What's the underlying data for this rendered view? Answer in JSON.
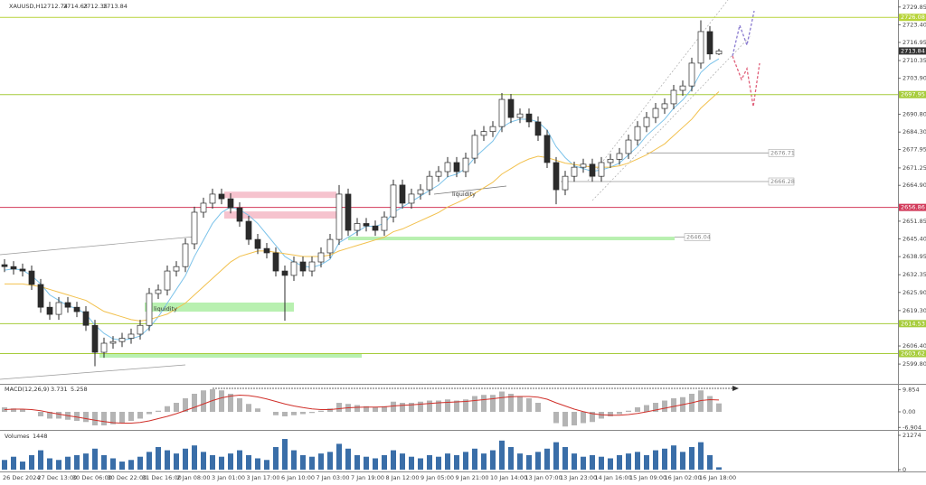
{
  "chart_data": [
    {
      "type": "candlestick",
      "title": "XAUUSD,H1",
      "open": [
        2636.0,
        2635.3,
        2634.4,
        2633.7,
        2628.8,
        2620.5,
        2617.9,
        2622.2,
        2620.5,
        2618.9,
        2613.9,
        2604.1,
        2607.4,
        2608.0,
        2609.2,
        2610.7,
        2613.9,
        2625.5,
        2626.8,
        2633.7,
        2635.3,
        2643.6,
        2655.1,
        2658.4,
        2661.7,
        2660.0,
        2656.7,
        2651.8,
        2645.2,
        2641.9,
        2640.3,
        2633.7,
        2632.1,
        2637.0,
        2633.7,
        2637.0,
        2640.3,
        2645.2,
        2661.7,
        2648.5,
        2651.0,
        2650.1,
        2648.5,
        2653.4,
        2665.0,
        2658.4,
        2661.7,
        2663.3,
        2668.2,
        2669.9,
        2673.2,
        2669.9,
        2674.8,
        2683.1,
        2684.5,
        2686.3,
        2696.2,
        2689.6,
        2690.9,
        2688.0,
        2683.1,
        2673.2,
        2663.3,
        2668.2,
        2671.5,
        2672.6,
        2668.2,
        2673.2,
        2674.4,
        2676.5,
        2681.4,
        2686.3,
        2689.6,
        2692.9,
        2694.6,
        2699.5,
        2701.1,
        2709.4,
        2720.9,
        2712.74
      ],
      "high": [
        2638.0,
        2637.3,
        2636.4,
        2635.7,
        2630.8,
        2622.5,
        2624.2,
        2624.2,
        2622.5,
        2620.9,
        2615.9,
        2609.4,
        2610.0,
        2611.2,
        2612.7,
        2615.9,
        2627.5,
        2628.8,
        2635.7,
        2637.3,
        2645.6,
        2657.1,
        2660.4,
        2663.7,
        2663.7,
        2662.0,
        2658.7,
        2653.8,
        2647.2,
        2643.9,
        2642.3,
        2635.7,
        2639.0,
        2639.0,
        2639.0,
        2642.3,
        2647.2,
        2665.0,
        2663.7,
        2653.0,
        2653.0,
        2652.1,
        2655.4,
        2667.0,
        2667.0,
        2663.7,
        2665.3,
        2670.2,
        2671.9,
        2675.2,
        2675.2,
        2676.8,
        2685.1,
        2686.5,
        2688.3,
        2698.5,
        2698.2,
        2692.9,
        2692.9,
        2690.0,
        2685.1,
        2675.2,
        2670.2,
        2673.5,
        2674.6,
        2674.6,
        2675.2,
        2676.4,
        2678.5,
        2683.4,
        2688.3,
        2691.6,
        2694.9,
        2696.6,
        2701.5,
        2703.1,
        2711.4,
        2725.0,
        2722.9,
        2714.63
      ],
      "low": [
        2633.3,
        2632.4,
        2631.7,
        2626.8,
        2618.5,
        2615.9,
        2615.9,
        2618.5,
        2616.9,
        2611.9,
        2599.0,
        2602.1,
        2605.4,
        2606.0,
        2607.2,
        2608.7,
        2611.9,
        2623.5,
        2624.8,
        2631.7,
        2633.3,
        2641.6,
        2653.1,
        2656.4,
        2658.0,
        2654.7,
        2649.8,
        2643.2,
        2639.9,
        2638.3,
        2631.7,
        2615.6,
        2630.1,
        2631.7,
        2631.7,
        2635.0,
        2638.3,
        2643.2,
        2646.5,
        2646.5,
        2648.1,
        2646.5,
        2646.5,
        2651.4,
        2656.4,
        2656.4,
        2659.7,
        2661.3,
        2666.2,
        2667.9,
        2667.9,
        2667.9,
        2672.8,
        2681.1,
        2682.5,
        2684.3,
        2687.6,
        2687.6,
        2686.0,
        2681.1,
        2671.2,
        2658.0,
        2661.3,
        2666.2,
        2669.5,
        2666.2,
        2666.2,
        2671.2,
        2672.4,
        2674.5,
        2679.4,
        2684.3,
        2687.6,
        2690.9,
        2692.6,
        2697.5,
        2699.1,
        2707.4,
        2710.7,
        2712.35
      ],
      "close": [
        2635.3,
        2634.4,
        2633.7,
        2628.8,
        2620.5,
        2617.9,
        2622.2,
        2620.5,
        2618.9,
        2613.9,
        2604.1,
        2607.4,
        2608.0,
        2609.2,
        2610.7,
        2613.9,
        2625.5,
        2626.8,
        2633.7,
        2635.3,
        2643.6,
        2655.1,
        2658.4,
        2661.7,
        2660.0,
        2656.7,
        2651.8,
        2645.2,
        2641.9,
        2640.3,
        2633.7,
        2632.1,
        2637.0,
        2633.7,
        2637.0,
        2640.3,
        2645.2,
        2661.7,
        2648.5,
        2651.0,
        2650.1,
        2648.5,
        2653.4,
        2665.0,
        2658.4,
        2661.7,
        2663.3,
        2668.2,
        2669.9,
        2673.2,
        2669.9,
        2674.8,
        2683.1,
        2684.5,
        2686.3,
        2696.2,
        2689.6,
        2690.9,
        2688.0,
        2683.1,
        2673.2,
        2663.3,
        2668.2,
        2671.5,
        2672.6,
        2668.2,
        2673.2,
        2674.4,
        2676.5,
        2681.4,
        2686.3,
        2689.6,
        2692.9,
        2694.6,
        2699.5,
        2701.1,
        2709.4,
        2720.9,
        2712.74,
        2713.84
      ],
      "up_color": "#ffffff",
      "down_color": "#2b2b2b",
      "wick_color": "#2b2b2b",
      "lines": [
        {
          "color": "#7cc3ea",
          "values": [
            2634,
            2634.5,
            2634,
            2632,
            2629,
            2625,
            2623,
            2621,
            2620,
            2618,
            2614,
            2611,
            2609,
            2608.5,
            2609,
            2610,
            2613,
            2617,
            2622,
            2627,
            2632,
            2639,
            2645,
            2651,
            2655,
            2657,
            2656,
            2654,
            2651,
            2647,
            2643,
            2639,
            2637,
            2635.5,
            2635,
            2636,
            2638,
            2644,
            2646,
            2648,
            2650,
            2650,
            2651,
            2655,
            2657,
            2659,
            2661,
            2663,
            2665,
            2668,
            2669,
            2671,
            2675,
            2678,
            2681,
            2686,
            2688,
            2689,
            2689,
            2688,
            2685,
            2679,
            2675,
            2672,
            2671,
            2670,
            2670.5,
            2671.5,
            2673,
            2676,
            2679,
            2683,
            2686,
            2689,
            2693,
            2696,
            2700,
            2706,
            2709,
            2711
          ]
        },
        {
          "color": "#f2c14e",
          "values": [
            2629,
            2629,
            2629,
            2628.5,
            2628,
            2627,
            2626,
            2625,
            2624,
            2623,
            2621,
            2619,
            2618,
            2617,
            2616,
            2615.5,
            2616,
            2617,
            2618,
            2620,
            2622,
            2625,
            2628,
            2631,
            2634,
            2637,
            2639,
            2640,
            2641,
            2641,
            2640.5,
            2640,
            2639.5,
            2639,
            2639,
            2639,
            2639.5,
            2641,
            2642,
            2643,
            2644,
            2645,
            2646,
            2648,
            2649,
            2650.5,
            2652,
            2653.5,
            2655,
            2657,
            2658.5,
            2660,
            2662,
            2664,
            2666,
            2669,
            2671,
            2673,
            2674.5,
            2675.5,
            2675,
            2674,
            2673,
            2672.5,
            2672,
            2671.5,
            2671.5,
            2671.5,
            2672,
            2673,
            2674.5,
            2676,
            2678,
            2680,
            2683,
            2686,
            2689,
            2693,
            2696,
            2699
          ]
        }
      ],
      "levels": [
        {
          "value": 2726.08,
          "color": "#b8d43a"
        },
        {
          "value": 2697.95,
          "color": "#a6cc3a"
        },
        {
          "value": 2656.86,
          "color": "#d23a5a"
        },
        {
          "value": 2614.53,
          "color": "#a6cc3a"
        },
        {
          "value": 2603.62,
          "color": "#a6cc3a"
        }
      ],
      "side_levels": [
        2676.71,
        2666.28,
        2646.04
      ],
      "zones": [
        {
          "low": 2660.3,
          "high": 2662.6,
          "color": "#f6c3ce"
        },
        {
          "low": 2652.8,
          "high": 2655.4,
          "color": "#f6c3ce"
        },
        {
          "low": 2618.9,
          "high": 2622.2,
          "color": "#b8f0b0"
        },
        {
          "low": 2602.1,
          "high": 2603.8,
          "color": "#b8f0b0"
        },
        {
          "low": 2644.9,
          "high": 2646.2,
          "color": "#b8f0b0"
        }
      ],
      "annotations": [
        "liquidity",
        "liquidity"
      ],
      "ylim": [
        2592.6,
        2732.4
      ],
      "yticks": [
        2729.85,
        {
          "value": 2723.4,
          "label": "2723.40"
        },
        2716.95,
        2710.35,
        {
          "value": 2703.9,
          "label": "2703.90"
        },
        {
          "value": 2690.8,
          "label": "2690.80"
        },
        {
          "value": 2684.3,
          "label": "2684.30"
        },
        2677.95,
        2671.25,
        {
          "value": 2664.9,
          "label": "2664.90"
        },
        2651.85,
        {
          "value": 2645.4,
          "label": "2645.40"
        },
        2638.95,
        2632.35,
        {
          "value": 2625.9,
          "label": "2625.90"
        },
        {
          "value": 2619.3,
          "label": "2619.30"
        },
        {
          "value": 2606.4,
          "label": "2606.40"
        },
        {
          "value": 2599.8,
          "label": "2599.80"
        }
      ],
      "time_labels": [
        "26 Dec 2024",
        "27 Dec 13:00",
        "30 Dec 06:00",
        "30 Dec 22:00",
        "31 Dec 16:00",
        "2 Jan 08:00",
        "3 Jan 01:00",
        "3 Jan 17:00",
        "6 Jan 10:00",
        "7 Jan 03:00",
        "7 Jan 19:00",
        "8 Jan 12:00",
        "9 Jan 05:00",
        "9 Jan 21:00",
        "10 Jan 14:00",
        "13 Jan 07:00",
        "13 Jan 23:00",
        "14 Jan 16:00",
        "15 Jan 09:00",
        "16 Jan 02:00",
        "16 Jan 18:00"
      ]
    },
    {
      "type": "macd",
      "title": "MACD(12,26,9)",
      "values": [
        2,
        1.5,
        1,
        0,
        -2,
        -3,
        -3,
        -3.5,
        -4,
        -4.5,
        -6,
        -6,
        -5.5,
        -5,
        -4,
        -3,
        -1,
        0.5,
        2.5,
        4,
        6,
        8,
        9.5,
        10,
        9.5,
        8,
        6,
        3.5,
        1.5,
        0,
        -1.5,
        -2,
        -1.5,
        -1,
        -0.5,
        0.5,
        1.5,
        4,
        3.5,
        3,
        2.5,
        2,
        2.5,
        4.5,
        4,
        4,
        4.5,
        5,
        5,
        5.5,
        5,
        5.5,
        7,
        7.5,
        7.5,
        9,
        8,
        7,
        6,
        4,
        0,
        -5,
        -6.5,
        -6,
        -5,
        -4.5,
        -3,
        -2,
        -1,
        0.5,
        2,
        3,
        4,
        5,
        6,
        6.5,
        8,
        9.5,
        7,
        3.731
      ],
      "signal": [
        1,
        1.2,
        1.2,
        1,
        0.5,
        -0.3,
        -1,
        -1.7,
        -2.3,
        -3,
        -3.7,
        -4.3,
        -4.8,
        -5,
        -5,
        -4.7,
        -4,
        -3,
        -2,
        -0.8,
        0.6,
        2,
        3.5,
        5,
        6.2,
        7,
        7.4,
        7.2,
        6.6,
        5.7,
        4.6,
        3.5,
        2.6,
        1.9,
        1.3,
        1,
        1,
        1.4,
        1.8,
        2,
        2.1,
        2.1,
        2.2,
        2.6,
        2.9,
        3.1,
        3.4,
        3.7,
        4,
        4.2,
        4.4,
        4.6,
        5,
        5.4,
        5.8,
        6.3,
        6.7,
        6.8,
        6.8,
        6.5,
        5.6,
        4,
        2.6,
        1.2,
        0.1,
        -0.8,
        -1.3,
        -1.5,
        -1.5,
        -1.2,
        -0.7,
        0,
        0.8,
        1.6,
        2.4,
        3.2,
        4,
        5,
        5.4,
        5.258
      ],
      "color": "#b4b4b4",
      "signal_color": "#d0302a",
      "ylim": [
        -8,
        12
      ],
      "yticks": [
        9.854,
        {
          "value": 0,
          "label": "0.00"
        },
        -6.904
      ]
    },
    {
      "type": "bar",
      "title": "Volumes",
      "values": [
        6000,
        8000,
        5000,
        9000,
        12000,
        7000,
        6000,
        8000,
        9000,
        10000,
        13000,
        9000,
        7000,
        5000,
        6000,
        8000,
        11000,
        14000,
        12000,
        10000,
        13000,
        15000,
        11000,
        9000,
        8000,
        10000,
        12000,
        9000,
        7000,
        6000,
        14000,
        19000,
        12000,
        9000,
        8000,
        10000,
        11000,
        16000,
        13000,
        9000,
        8000,
        7000,
        9000,
        12000,
        10000,
        8000,
        7000,
        9000,
        8000,
        10000,
        9000,
        11000,
        13000,
        10000,
        12000,
        18000,
        14000,
        10000,
        9000,
        11000,
        13000,
        17000,
        14000,
        10000,
        8000,
        9000,
        8000,
        7000,
        9000,
        10000,
        11000,
        9000,
        12000,
        13000,
        15000,
        11000,
        14000,
        17000,
        9000,
        1448
      ],
      "color": "#3a6ea8",
      "ylim": [
        0,
        23500
      ],
      "yticks": [
        21274,
        0
      ]
    }
  ]
}
